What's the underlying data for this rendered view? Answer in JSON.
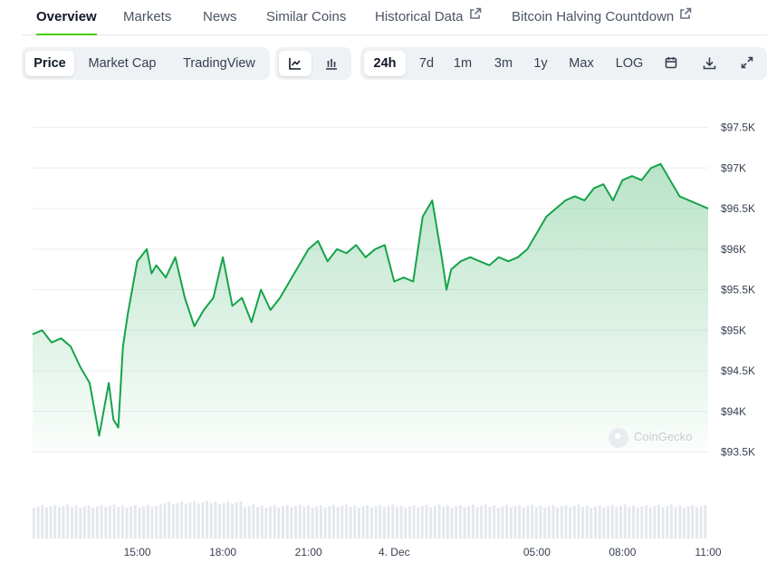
{
  "tabs": [
    {
      "label": "Overview",
      "active": true
    },
    {
      "label": "Markets"
    },
    {
      "label": "News"
    },
    {
      "label": "Similar Coins"
    },
    {
      "label": "Historical Data",
      "icon": "external-link-icon"
    },
    {
      "label": "Bitcoin Halving Countdown",
      "icon": "external-link-icon"
    }
  ],
  "toolbar": {
    "view": {
      "price": "Price",
      "market_cap": "Market Cap",
      "tradingview": "TradingView",
      "selected": "Price"
    },
    "chart_type": {
      "line_icon": "line-chart-icon",
      "candle_icon": "candlestick-chart-icon",
      "selected": "line"
    },
    "range": {
      "d24h": "24h",
      "d7": "7d",
      "m1": "1m",
      "m3": "3m",
      "y1": "1y",
      "max": "Max",
      "log": "LOG",
      "selected": "24h"
    },
    "icons": {
      "calendar": "calendar-icon",
      "download": "download-icon",
      "fullscreen": "expand-icon"
    }
  },
  "watermark": "CoinGecko",
  "colors": {
    "line": "#16a34a",
    "fill_top": "#bfe8c9",
    "volume": "#e3e6ea",
    "accent": "#4bcc00"
  },
  "chart_data": {
    "type": "area",
    "x_tick_labels": [
      "15:00",
      "18:00",
      "21:00",
      "4. Dec",
      "05:00",
      "08:00",
      "11:00"
    ],
    "y_tick_labels": [
      "$97.5K",
      "$97K",
      "$96.5K",
      "$96K",
      "$95.5K",
      "$95K",
      "$94.5K",
      "$94K",
      "$93.5K"
    ],
    "y_ticks": [
      97500,
      97000,
      96500,
      96000,
      95500,
      95000,
      94500,
      94000,
      93500
    ],
    "ylim": [
      93500,
      97500
    ],
    "grid": true,
    "x": [
      "11:20",
      "11:40",
      "12:00",
      "12:20",
      "12:40",
      "13:00",
      "13:20",
      "13:40",
      "14:00",
      "14:10",
      "14:20",
      "14:30",
      "14:40",
      "15:00",
      "15:20",
      "15:30",
      "15:40",
      "16:00",
      "16:20",
      "16:40",
      "17:00",
      "17:20",
      "17:40",
      "18:00",
      "18:20",
      "18:40",
      "19:00",
      "19:20",
      "19:40",
      "20:00",
      "20:20",
      "20:40",
      "21:00",
      "21:20",
      "21:40",
      "22:00",
      "22:20",
      "22:40",
      "23:00",
      "23:20",
      "23:40",
      "00:00",
      "00:20",
      "00:40",
      "01:00",
      "01:20",
      "01:40",
      "01:50",
      "02:00",
      "02:20",
      "02:40",
      "03:00",
      "03:20",
      "03:40",
      "04:00",
      "04:20",
      "04:40",
      "05:00",
      "05:20",
      "05:40",
      "06:00",
      "06:20",
      "06:40",
      "07:00",
      "07:20",
      "07:40",
      "08:00",
      "08:20",
      "08:40",
      "09:00",
      "09:20",
      "09:40",
      "10:00",
      "10:20",
      "10:40",
      "11:00"
    ],
    "series": [
      {
        "values": [
          94950,
          95000,
          94850,
          94900,
          94800,
          94550,
          94350,
          93700,
          94350,
          93900,
          93800,
          94800,
          95200,
          95850,
          96000,
          95700,
          95800,
          95650,
          95900,
          95400,
          95050,
          95250,
          95400,
          95900,
          95300,
          95400,
          95100,
          95500,
          95250,
          95400,
          95600,
          95800,
          96000,
          96100,
          95850,
          96000,
          95950,
          96050,
          95900,
          96000,
          96050,
          95600,
          95650,
          95600,
          96400,
          96600,
          95900,
          95500,
          95750,
          95850,
          95900,
          95850,
          95800,
          95900,
          95850,
          95900,
          96000,
          96200,
          96400,
          96500,
          96600,
          96650,
          96600,
          96750,
          96800,
          96600,
          96850,
          96900,
          96850,
          97000,
          97050,
          96850,
          96650,
          96600,
          96550,
          96500
        ]
      }
    ]
  }
}
